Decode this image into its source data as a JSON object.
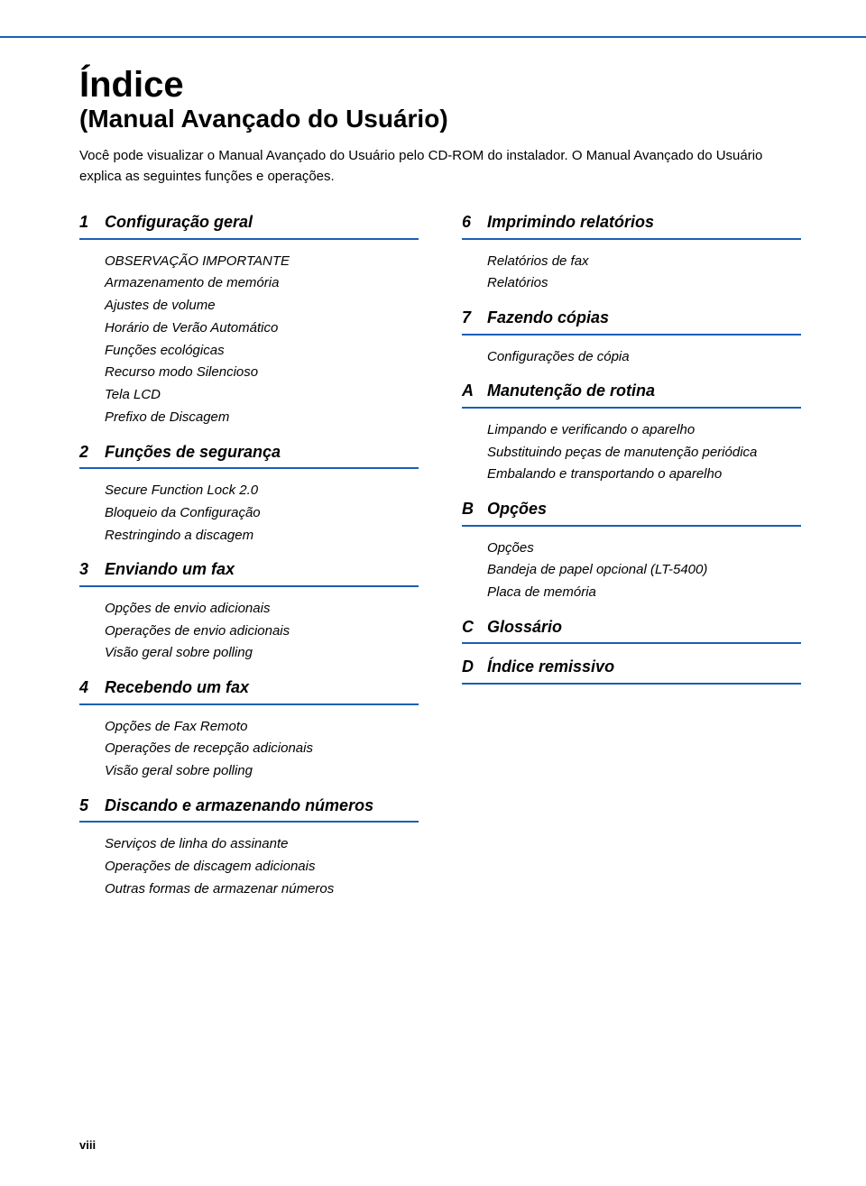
{
  "colors": {
    "rule": "#1a5fb4",
    "text": "#000000",
    "background": "#ffffff"
  },
  "typography": {
    "title_main_size": 40,
    "title_sub_size": 28,
    "intro_size": 15,
    "section_head_size": 18,
    "item_size": 15,
    "page_num_size": 13,
    "family": "Arial"
  },
  "title_main": "Índice",
  "title_sub": "(Manual Avançado do Usuário)",
  "intro": "Você pode visualizar o Manual Avançado do Usuário pelo CD-ROM do instalador. O Manual Avançado do Usuário explica as seguintes funções e operações.",
  "left_sections": [
    {
      "num": "1",
      "title": "Configuração geral",
      "items": [
        "OBSERVAÇÃO IMPORTANTE",
        "Armazenamento de memória",
        "Ajustes de volume",
        "Horário de Verão Automático",
        "Funções ecológicas",
        "Recurso modo Silencioso",
        "Tela LCD",
        "Prefixo de Discagem"
      ]
    },
    {
      "num": "2",
      "title": "Funções de segurança",
      "items": [
        "Secure Function Lock 2.0",
        "Bloqueio da Configuração",
        "Restringindo a discagem"
      ]
    },
    {
      "num": "3",
      "title": "Enviando um fax",
      "items": [
        "Opções de envio adicionais",
        "Operações de envio adicionais",
        "Visão geral sobre polling"
      ]
    },
    {
      "num": "4",
      "title": "Recebendo um fax",
      "items": [
        "Opções de Fax Remoto",
        "Operações de recepção adicionais",
        "Visão geral sobre polling"
      ]
    },
    {
      "num": "5",
      "title": "Discando e armazenando números",
      "items": [
        "Serviços de linha do assinante",
        "Operações de discagem adicionais",
        "Outras formas de armazenar números"
      ]
    }
  ],
  "right_sections": [
    {
      "num": "6",
      "title": "Imprimindo relatórios",
      "items": [
        "Relatórios de fax",
        "Relatórios"
      ]
    },
    {
      "num": "7",
      "title": "Fazendo cópias",
      "items": [
        "Configurações de cópia"
      ]
    },
    {
      "num": "A",
      "title": "Manutenção de rotina",
      "items": [
        "Limpando e verificando o aparelho",
        "Substituindo peças de manutenção periódica",
        "Embalando e transportando o aparelho"
      ]
    },
    {
      "num": "B",
      "title": "Opções",
      "items": [
        "Opções",
        "Bandeja de papel opcional (LT-5400)",
        "Placa de memória"
      ]
    },
    {
      "num": "C",
      "title": "Glossário",
      "items": []
    },
    {
      "num": "D",
      "title": "Índice remissivo",
      "items": []
    }
  ],
  "page_number": "viii"
}
